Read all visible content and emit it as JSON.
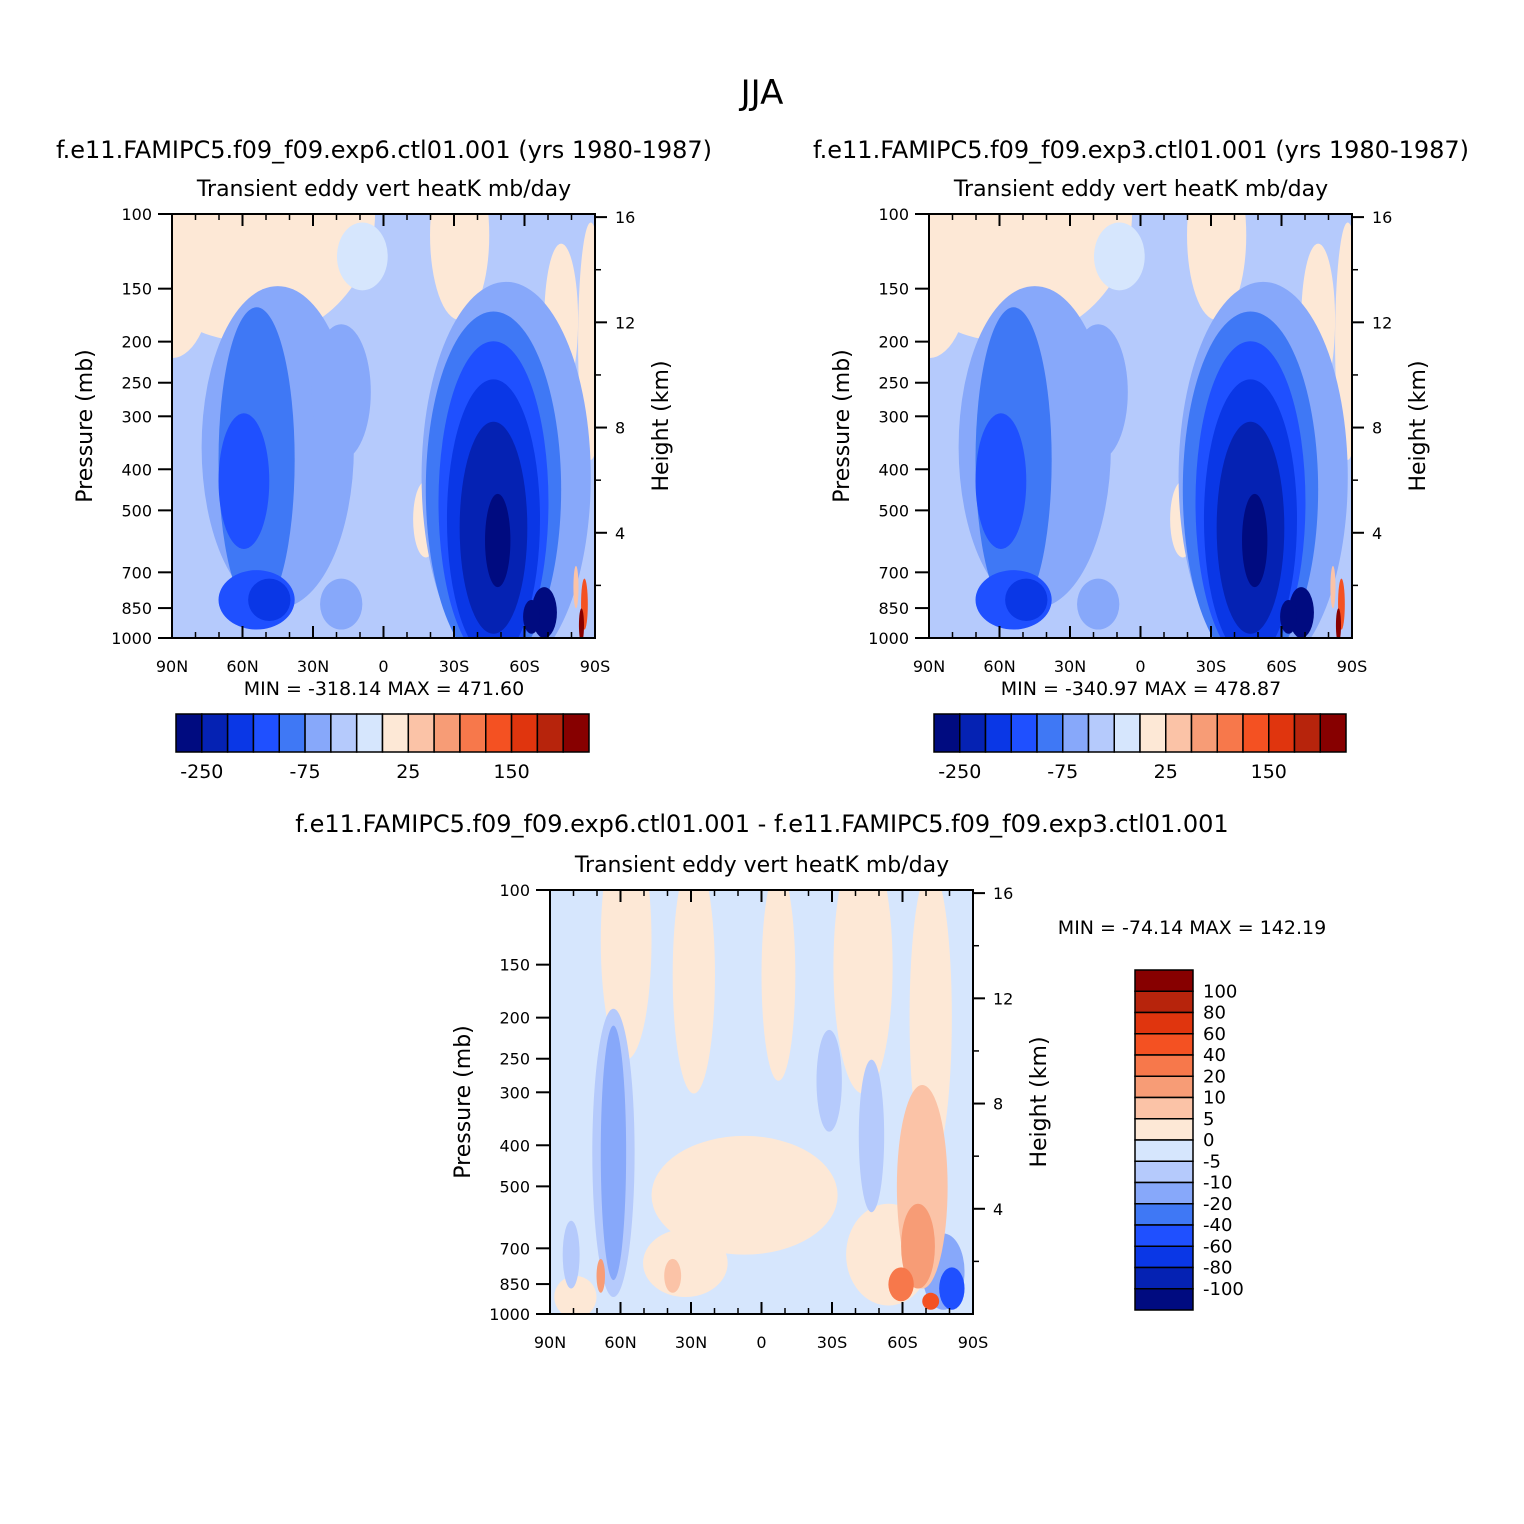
{
  "figure_title": "JJA",
  "colors": {
    "cmap14": [
      "#000b80",
      "#0522b3",
      "#0a37e6",
      "#1f50ff",
      "#3f78f5",
      "#87a8fa",
      "#b5cafc",
      "#d6e6fd",
      "#fde8d6",
      "#fbc3a7",
      "#f79c76",
      "#f7784b",
      "#f45122",
      "#e0350e",
      "#b7240c",
      "#870000"
    ],
    "diff": [
      "#000b80",
      "#0522b3",
      "#0a37e6",
      "#1f50ff",
      "#3f78f5",
      "#87a8fa",
      "#b5cafc",
      "#d6e6fd",
      "#fde8d6",
      "#fbc3a7",
      "#f79c76",
      "#f7784b",
      "#f45122",
      "#e0350e",
      "#b7240c",
      "#870000"
    ]
  },
  "chart_data": [
    {
      "id": "p1",
      "type": "contour",
      "title": "f.e11.FAMIPC5.f09_f09.exp6.ctl01.001 (yrs 1980-1987)",
      "subtitle": "Transient eddy vert heatK mb/day",
      "xlabel": "",
      "ylabel": "Pressure (mb)",
      "ylabel_right": "Height (km)",
      "x_ticks": [
        "90N",
        "60N",
        "30N",
        "0",
        "30S",
        "60S",
        "90S"
      ],
      "y_ticks": [
        100,
        150,
        200,
        250,
        300,
        400,
        500,
        700,
        850,
        1000
      ],
      "y_scale": "log",
      "ylim": [
        1000,
        100
      ],
      "height_ticks": [
        4,
        8,
        12,
        16
      ],
      "min_max": "MIN = -318.14   MAX = 471.60",
      "colorbar_labels": [
        "-250",
        "-75",
        "25",
        "150"
      ]
    },
    {
      "id": "p2",
      "type": "contour",
      "title": "f.e11.FAMIPC5.f09_f09.exp3.ctl01.001 (yrs 1980-1987)",
      "subtitle": "Transient eddy vert heatK mb/day",
      "xlabel": "",
      "ylabel": "Pressure (mb)",
      "ylabel_right": "Height (km)",
      "x_ticks": [
        "90N",
        "60N",
        "30N",
        "0",
        "30S",
        "60S",
        "90S"
      ],
      "y_ticks": [
        100,
        150,
        200,
        250,
        300,
        400,
        500,
        700,
        850,
        1000
      ],
      "y_scale": "log",
      "ylim": [
        1000,
        100
      ],
      "height_ticks": [
        4,
        8,
        12,
        16
      ],
      "min_max": "MIN = -340.97   MAX = 478.87",
      "colorbar_labels": [
        "-250",
        "-75",
        "25",
        "150"
      ]
    },
    {
      "id": "p3",
      "type": "contour",
      "title": "f.e11.FAMIPC5.f09_f09.exp6.ctl01.001 - f.e11.FAMIPC5.f09_f09.exp3.ctl01.001",
      "subtitle": "Transient eddy vert heatK mb/day",
      "xlabel": "",
      "ylabel": "Pressure (mb)",
      "ylabel_right": "Height (km)",
      "x_ticks": [
        "90N",
        "60N",
        "30N",
        "0",
        "30S",
        "60S",
        "90S"
      ],
      "y_ticks": [
        100,
        150,
        200,
        250,
        300,
        400,
        500,
        700,
        850,
        1000
      ],
      "y_scale": "log",
      "ylim": [
        1000,
        100
      ],
      "height_ticks": [
        4,
        8,
        12,
        16
      ],
      "min_max": "MIN = -74.14   MAX = 142.19",
      "colorbar_labels": [
        "100",
        "80",
        "60",
        "40",
        "20",
        "10",
        "5",
        "0",
        "-5",
        "-10",
        "-20",
        "-40",
        "-60",
        "-80",
        "-100"
      ]
    }
  ]
}
